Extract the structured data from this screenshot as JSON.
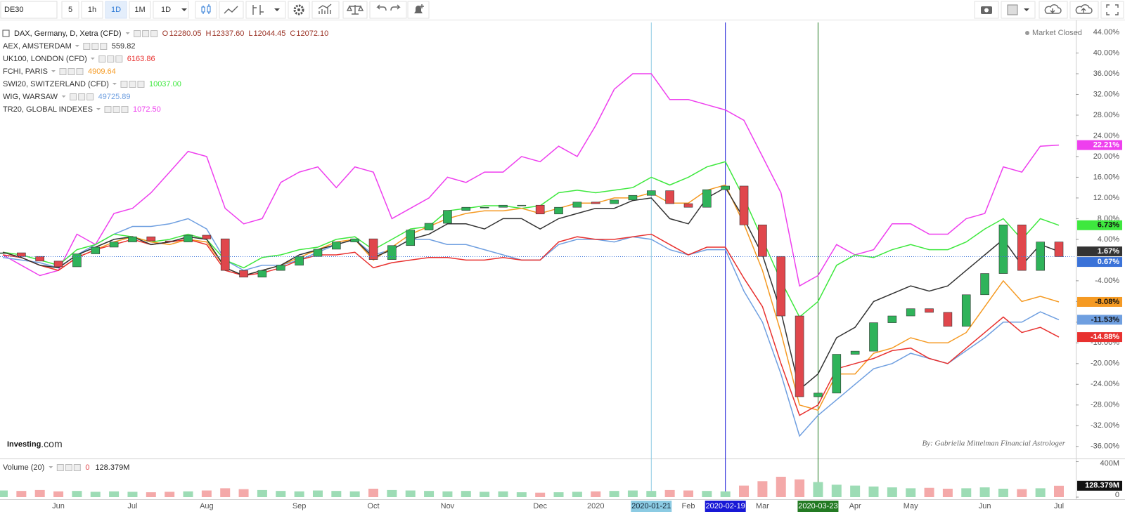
{
  "toolbar": {
    "symbol": "DE30",
    "intervals": [
      "5",
      "1h",
      "1D",
      "1M",
      "1D"
    ],
    "active": 2
  },
  "chart_data": {
    "type": "line",
    "title": "DAX, Germany, D, Xetra (CFD)",
    "ohlc": [
      {
        "key": "O",
        "value": "12280.05"
      },
      {
        "key": "H",
        "value": "12337.60"
      },
      {
        "key": "L",
        "value": "12044.45"
      },
      {
        "key": "C",
        "value": "12072.10"
      }
    ],
    "ohlc_color": "#9b3326",
    "status": "Market Closed",
    "brand": [
      "Investing",
      ".com"
    ],
    "author": "By:  Gabriella Mittelman Financial Astrologer",
    "grid": false,
    "categories": [
      null,
      null,
      null,
      "Jun",
      null,
      null,
      null,
      "Jul",
      null,
      null,
      null,
      "Aug",
      null,
      null,
      null,
      null,
      "Sep",
      null,
      null,
      null,
      "Oct",
      null,
      null,
      null,
      "Nov",
      null,
      null,
      null,
      null,
      "Dec",
      null,
      null,
      "2020",
      null,
      null,
      {
        "label": "2020-01-21",
        "highlight": "#8ccbe3"
      },
      null,
      "Feb",
      null,
      {
        "label": "2020-02-19",
        "highlight": "#1818d6"
      },
      null,
      "Mar",
      null,
      null,
      {
        "label": "2020-03-23",
        "highlight": "#237a23"
      },
      null,
      "Apr",
      null,
      null,
      "May",
      null,
      null,
      null,
      "Jun",
      null,
      null,
      null,
      "Jul"
    ],
    "ylim": [
      -38.2,
      45.9
    ],
    "yticks": [
      {
        "value": 44,
        "label": "44.00%"
      },
      {
        "value": 40,
        "label": "40.00%"
      },
      {
        "value": 36,
        "label": "36.00%"
      },
      {
        "value": 32,
        "label": "32.00%"
      },
      {
        "value": 28,
        "label": "28.00%"
      },
      {
        "value": 24,
        "label": "24.00%"
      },
      {
        "value": 20,
        "label": "20.00%"
      },
      {
        "value": 16,
        "label": "16.00%"
      },
      {
        "value": 12,
        "label": "12.00%"
      },
      {
        "value": 8,
        "label": "8.00%"
      },
      {
        "value": 4,
        "label": "4.00%"
      },
      {
        "value": -4,
        "label": "-4.00%"
      },
      {
        "value": -8,
        "label": "-8.00%"
      },
      {
        "value": -12,
        "label": "-12.00%"
      },
      {
        "value": -16,
        "label": "-16.00%"
      },
      {
        "value": -20,
        "label": "-20.00%"
      },
      {
        "value": -24,
        "label": "-24.00%"
      },
      {
        "value": -28,
        "label": "-28.00%"
      },
      {
        "value": -32,
        "label": "-32.00%"
      },
      {
        "value": -36,
        "label": "-36.00%"
      }
    ],
    "series": [
      {
        "style": "candle",
        "color": "#3a72d8",
        "color_up": "#2fb35a",
        "color_down": "#e0474c",
        "values": [
          1.4,
          0.7,
          -0.2,
          -1.3,
          1.2,
          2.5,
          3.5,
          4.5,
          3.7,
          3.5,
          4.8,
          4.1,
          -2.0,
          -3.3,
          -2.0,
          -1.0,
          0.7,
          2.1,
          3.5,
          4.1,
          0.1,
          2.8,
          5.8,
          7.1,
          9.6,
          10.2,
          10.2,
          10.6,
          10.6,
          8.9,
          10.2,
          11.2,
          10.9,
          11.6,
          12.5,
          13.4,
          10.9,
          10.2,
          13.6,
          14.3,
          6.8,
          0.7,
          -10.8,
          -26.4,
          -25.7,
          -18.2,
          -17.6,
          -12.1,
          -10.8,
          -9.4,
          -10.1,
          -12.8,
          -6.7,
          -2.6,
          6.8,
          -2.0,
          3.5,
          0.67
        ],
        "value_labels": [
          null,
          null,
          null,
          null,
          null,
          null,
          null,
          null,
          null,
          null,
          null,
          null,
          null,
          null,
          null,
          null,
          null,
          null,
          null,
          null,
          null,
          null,
          null,
          null,
          null,
          null,
          null,
          null,
          null,
          null,
          null,
          null,
          null,
          null,
          null,
          null,
          null,
          null,
          null,
          null,
          null,
          null,
          null,
          null,
          null,
          null,
          null,
          null,
          null,
          null,
          null,
          null,
          null,
          null,
          null,
          null,
          null,
          "0.67%"
        ]
      },
      {
        "name": "AEX, AMSTERDAM",
        "price": "559.82",
        "color": "#333333",
        "values": [
          1.5,
          0.5,
          -1,
          -1.5,
          1,
          2.5,
          4,
          4.5,
          3,
          3.5,
          4.5,
          4,
          -1.5,
          -3,
          -2,
          -1,
          1,
          2,
          3,
          4,
          0.5,
          2,
          4,
          5,
          7,
          7,
          6,
          8,
          8,
          6,
          8,
          9,
          10,
          10,
          11.5,
          12,
          8,
          7,
          12,
          14,
          8,
          1,
          -10,
          -25,
          -22,
          -15,
          -13,
          -8,
          -6.5,
          -5,
          -6,
          -5,
          -2,
          1,
          4,
          -1,
          3,
          1.67
        ],
        "value_labels": [
          null,
          null,
          null,
          null,
          null,
          null,
          null,
          null,
          null,
          null,
          null,
          null,
          null,
          null,
          null,
          null,
          null,
          null,
          null,
          null,
          null,
          null,
          null,
          null,
          null,
          null,
          null,
          null,
          null,
          null,
          null,
          null,
          null,
          null,
          null,
          null,
          null,
          null,
          null,
          null,
          null,
          null,
          null,
          null,
          null,
          null,
          null,
          null,
          null,
          null,
          null,
          null,
          null,
          null,
          null,
          null,
          null,
          "1.67%"
        ]
      },
      {
        "name": "UK100, LONDON (CFD)",
        "price": "6163.86",
        "color": "#e8312f",
        "values": [
          1,
          0.5,
          -1,
          -2,
          0.5,
          2,
          3,
          4,
          3,
          3.5,
          4,
          3,
          -2,
          -3,
          -2.5,
          -1.5,
          0,
          1,
          1,
          1.5,
          -1.5,
          -0.5,
          0,
          0.5,
          0.5,
          0,
          0,
          0.5,
          0,
          0,
          3.5,
          4.5,
          4,
          4,
          4.5,
          5,
          3,
          1,
          2.5,
          2.5,
          -3.5,
          -9,
          -20,
          -30,
          -28,
          -21,
          -20,
          -19,
          -17.5,
          -17,
          -19,
          -20,
          -17,
          -14,
          -11,
          -14,
          -13,
          -14.88
        ],
        "value_labels": [
          null,
          null,
          null,
          null,
          null,
          null,
          null,
          null,
          null,
          null,
          null,
          null,
          null,
          null,
          null,
          null,
          null,
          null,
          null,
          null,
          null,
          null,
          null,
          null,
          null,
          null,
          null,
          null,
          null,
          null,
          null,
          null,
          null,
          null,
          null,
          null,
          null,
          null,
          null,
          null,
          null,
          null,
          null,
          null,
          null,
          null,
          null,
          null,
          null,
          null,
          null,
          null,
          null,
          null,
          null,
          null,
          null,
          "-14.88%"
        ]
      },
      {
        "name": "FCHI, PARIS",
        "price": "4909.64",
        "color": "#f59a23",
        "values": [
          1.5,
          0.5,
          -1,
          -2,
          0.5,
          2,
          3.5,
          4.5,
          3.5,
          3,
          4,
          3.5,
          -1.5,
          -3,
          -2,
          -1,
          0.5,
          2,
          3.5,
          4,
          0,
          2.5,
          5,
          6.5,
          8,
          9,
          9.5,
          9.5,
          10,
          9,
          10,
          11,
          11,
          12,
          12,
          13,
          11,
          11,
          13.5,
          14.5,
          7,
          -2,
          -14,
          -28,
          -29,
          -22,
          -22,
          -18,
          -17,
          -15,
          -16,
          -16,
          -14,
          -9,
          -4,
          -8,
          -7,
          -8.08
        ],
        "value_labels": [
          null,
          null,
          null,
          null,
          null,
          null,
          null,
          null,
          null,
          null,
          null,
          null,
          null,
          null,
          null,
          null,
          null,
          null,
          null,
          null,
          null,
          null,
          null,
          null,
          null,
          null,
          null,
          null,
          null,
          null,
          null,
          null,
          null,
          null,
          null,
          null,
          null,
          null,
          null,
          null,
          null,
          null,
          null,
          null,
          null,
          null,
          null,
          null,
          null,
          null,
          null,
          null,
          null,
          null,
          null,
          null,
          null,
          "-8.08%"
        ]
      },
      {
        "name": "SWI20, SWITZERLAND (CFD)",
        "price": "10037.00",
        "color": "#3ee83e",
        "values": [
          1.5,
          1,
          0,
          -1,
          2,
          3,
          5,
          4.5,
          3.5,
          4,
          5,
          4,
          0,
          -1.5,
          0.5,
          1,
          2,
          2.5,
          4,
          4.5,
          2,
          4,
          6,
          6.5,
          9.5,
          10,
          10.5,
          10.5,
          10,
          10.5,
          13,
          13.5,
          13,
          13.5,
          14,
          16,
          14.5,
          16,
          18,
          19,
          12,
          4,
          -4,
          -11,
          -8,
          -1,
          1,
          0.5,
          2,
          3,
          2,
          2,
          3.5,
          6,
          8,
          4,
          8,
          6.73
        ],
        "value_labels": [
          null,
          null,
          null,
          null,
          null,
          null,
          null,
          null,
          null,
          null,
          null,
          null,
          null,
          null,
          null,
          null,
          null,
          null,
          null,
          null,
          null,
          null,
          null,
          null,
          null,
          null,
          null,
          null,
          null,
          null,
          null,
          null,
          null,
          null,
          null,
          null,
          null,
          null,
          null,
          null,
          null,
          null,
          null,
          null,
          null,
          null,
          null,
          null,
          null,
          null,
          null,
          null,
          null,
          null,
          null,
          null,
          null,
          "6.73%"
        ]
      },
      {
        "name": "WIG, WARSAW",
        "price": "49725.89",
        "color": "#6f9fe0",
        "values": [
          0.5,
          0,
          -0.5,
          -1.5,
          1,
          3,
          5,
          6.5,
          6.5,
          7,
          8,
          6,
          0,
          -2,
          -1,
          -1,
          0,
          1.5,
          3,
          4,
          1,
          2,
          4,
          4,
          3,
          3,
          2,
          1,
          0,
          0,
          3,
          4,
          4,
          3.5,
          4.5,
          4,
          2,
          1,
          2,
          2,
          -6,
          -12,
          -22,
          -34,
          -30,
          -27,
          -24,
          -21,
          -20,
          -18,
          -19,
          -20,
          -17.5,
          -15,
          -12,
          -12,
          -10,
          -11.53
        ],
        "value_labels": [
          null,
          null,
          null,
          null,
          null,
          null,
          null,
          null,
          null,
          null,
          null,
          null,
          null,
          null,
          null,
          null,
          null,
          null,
          null,
          null,
          null,
          null,
          null,
          null,
          null,
          null,
          null,
          null,
          null,
          null,
          null,
          null,
          null,
          null,
          null,
          null,
          null,
          null,
          null,
          null,
          null,
          null,
          null,
          null,
          null,
          null,
          null,
          null,
          null,
          null,
          null,
          null,
          null,
          null,
          null,
          null,
          null,
          "-11.53%"
        ]
      },
      {
        "name": "TR20, GLOBAL INDEXES",
        "price": "1072.50",
        "color": "#ee3fee",
        "values": [
          1,
          -1,
          -3,
          -2,
          5,
          3,
          9,
          10,
          13,
          17,
          21,
          20,
          10,
          7,
          8,
          15,
          17,
          18,
          14,
          18,
          17,
          8,
          10,
          12,
          16,
          15,
          17,
          17,
          20,
          19,
          22,
          20,
          26,
          33,
          36,
          36,
          31,
          31,
          30,
          29,
          27,
          20,
          13,
          -5,
          -3,
          3,
          1,
          2,
          7,
          7,
          5,
          5,
          8,
          9,
          18,
          17,
          22,
          22.21
        ],
        "value_labels": [
          null,
          null,
          null,
          null,
          null,
          null,
          null,
          null,
          null,
          null,
          null,
          null,
          null,
          null,
          null,
          null,
          null,
          null,
          null,
          null,
          null,
          null,
          null,
          null,
          null,
          null,
          null,
          null,
          null,
          null,
          null,
          null,
          null,
          null,
          null,
          null,
          null,
          null,
          null,
          null,
          null,
          null,
          null,
          null,
          null,
          null,
          null,
          null,
          null,
          null,
          null,
          null,
          null,
          null,
          null,
          null,
          null,
          "22.21%"
        ]
      }
    ],
    "volume": {
      "title": "Volume (20)",
      "indicator_value": "0",
      "color_up": "#9ddcb5",
      "color_down": "#f4a9a9",
      "label_color": "#111111",
      "ylim": [
        0,
        420000000
      ],
      "yticks": [
        {
          "value": 400000000,
          "label": "400M"
        },
        0
      ],
      "values": [
        75000000,
        70000000,
        80000000,
        65000000,
        70000000,
        60000000,
        65000000,
        60000000,
        55000000,
        60000000,
        65000000,
        75000000,
        100000000,
        90000000,
        80000000,
        70000000,
        65000000,
        75000000,
        70000000,
        65000000,
        95000000,
        80000000,
        75000000,
        70000000,
        65000000,
        70000000,
        60000000,
        65000000,
        55000000,
        50000000,
        55000000,
        60000000,
        65000000,
        70000000,
        75000000,
        70000000,
        80000000,
        75000000,
        70000000,
        65000000,
        130000000,
        180000000,
        230000000,
        200000000,
        170000000,
        140000000,
        130000000,
        120000000,
        110000000,
        100000000,
        105000000,
        95000000,
        100000000,
        110000000,
        95000000,
        90000000,
        100000000,
        128379000
      ],
      "value_labels": [
        null,
        null,
        null,
        null,
        null,
        null,
        null,
        null,
        null,
        null,
        null,
        null,
        null,
        null,
        null,
        null,
        null,
        null,
        null,
        null,
        null,
        null,
        null,
        null,
        null,
        null,
        null,
        null,
        null,
        null,
        null,
        null,
        null,
        null,
        null,
        null,
        null,
        null,
        null,
        null,
        null,
        null,
        null,
        null,
        null,
        null,
        null,
        null,
        null,
        null,
        null,
        null,
        null,
        null,
        null,
        null,
        null,
        "128.379M"
      ]
    }
  }
}
